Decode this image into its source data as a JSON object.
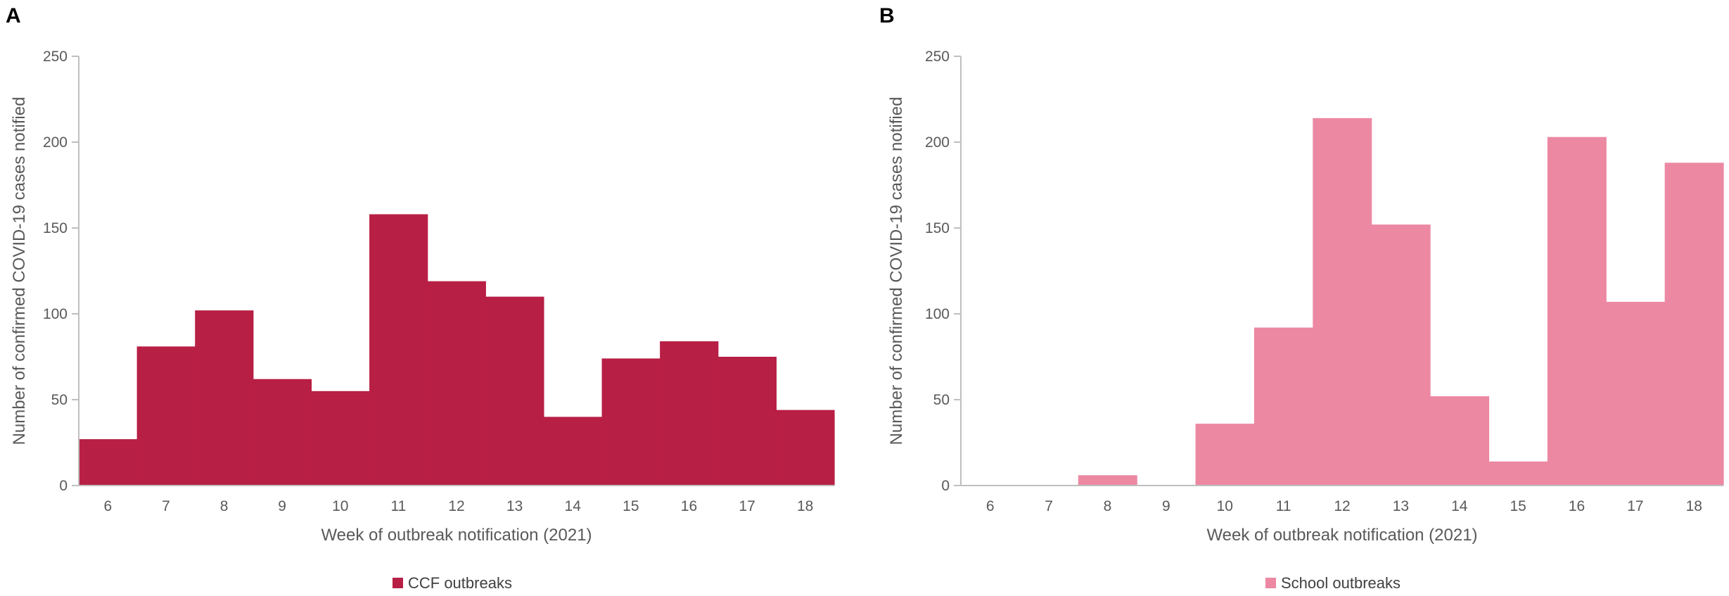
{
  "chart_data": [
    {
      "panel_label": "A",
      "type": "bar",
      "categories": [
        "6",
        "7",
        "8",
        "9",
        "10",
        "11",
        "12",
        "13",
        "14",
        "15",
        "16",
        "17",
        "18"
      ],
      "series": [
        {
          "name": "CCF outbreaks",
          "values": [
            27,
            81,
            102,
            62,
            55,
            158,
            119,
            110,
            40,
            74,
            84,
            75,
            44
          ]
        }
      ],
      "color": "#B81F44",
      "title": "",
      "xlabel": "Week of outbreak notification (2021)",
      "ylabel": "Number of confirmed COVID-19 cases notified",
      "ylim": [
        0,
        250
      ],
      "yticks": [
        0,
        50,
        100,
        150,
        200,
        250
      ],
      "grid": false,
      "legend": "bottom-center"
    },
    {
      "panel_label": "B",
      "type": "bar",
      "categories": [
        "6",
        "7",
        "8",
        "9",
        "10",
        "11",
        "12",
        "13",
        "14",
        "15",
        "16",
        "17",
        "18"
      ],
      "series": [
        {
          "name": "School outbreaks",
          "values": [
            0,
            0,
            6,
            0,
            36,
            92,
            214,
            152,
            52,
            14,
            203,
            107,
            188
          ]
        }
      ],
      "color": "#EC88A2",
      "title": "",
      "xlabel": "Week of outbreak notification (2021)",
      "ylabel": "Number of confirmed COVID-19 cases notified",
      "ylim": [
        0,
        250
      ],
      "yticks": [
        0,
        50,
        100,
        150,
        200,
        250
      ],
      "grid": false,
      "legend": "bottom-center"
    }
  ]
}
